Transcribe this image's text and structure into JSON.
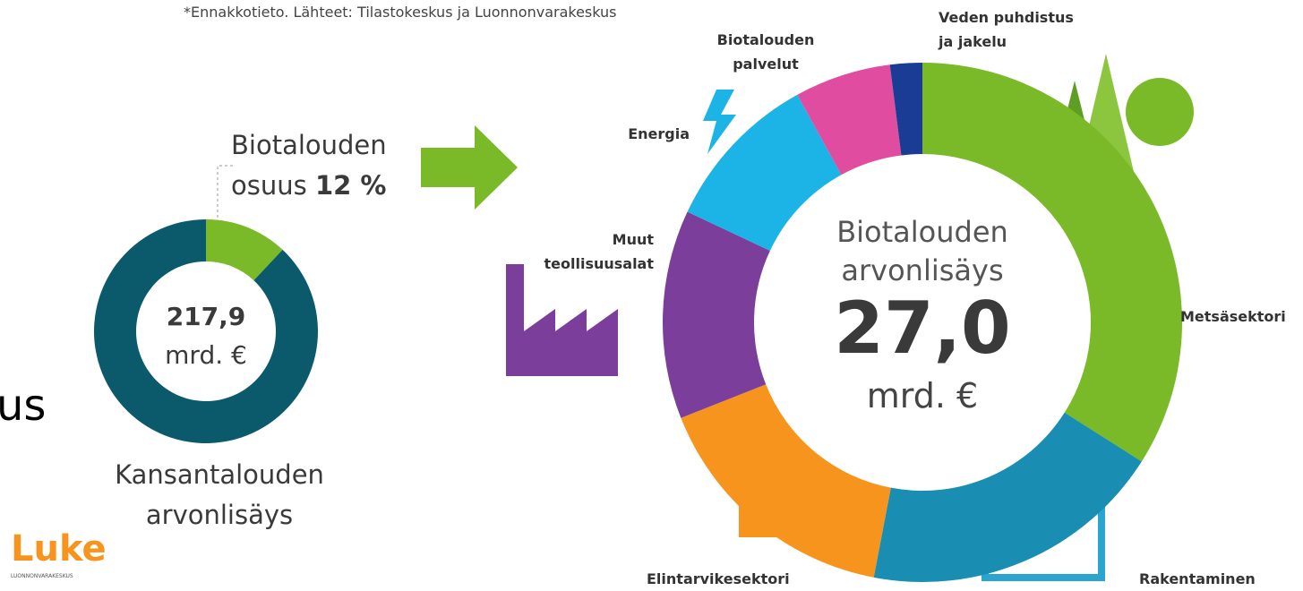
{
  "note": "*Ennakkotieto. Lähteet: Tilastokeskus ja Luonnonvarakeskus",
  "partial_text": "us",
  "logo": {
    "name": "Luke",
    "subtitle": "LUONNONVARAKESKUS"
  },
  "chart_data": [
    {
      "type": "donut",
      "annotation": [
        "Biotalouden",
        "osuus"
      ],
      "center_text": [
        "217,9",
        "mrd. €"
      ],
      "caption": [
        "Kansantalouden",
        "arvonlisäys"
      ],
      "values": [
        12,
        88
      ],
      "value_labels": [
        "12 %",
        null
      ],
      "colors": [
        "#7aba28",
        "#0b5a6b"
      ]
    },
    {
      "type": "donut",
      "center_text": [
        "Biotalouden",
        "arvonlisäys",
        "27,0",
        "mrd. €"
      ],
      "series": [
        {
          "name": "Metsäsektori",
          "color": "#7aba28",
          "values": [
            34
          ]
        },
        {
          "name": "Rakentaminen",
          "color": "#1a8db2",
          "values": [
            19
          ]
        },
        {
          "name": "Elintarvikesektori",
          "color": "#f7941d",
          "values": [
            16
          ]
        },
        {
          "name": "Muut teollisuusalat",
          "color": "#7b3f9b",
          "values": [
            13
          ]
        },
        {
          "name": "Energia",
          "color": "#1cb4e6",
          "values": [
            10
          ]
        },
        {
          "name": "Biotalouden palvelut",
          "color": "#e04da0",
          "values": [
            6
          ]
        },
        {
          "name": "Veden puhdistus ja jakelu",
          "color": "#1b3c94",
          "values": [
            2
          ]
        }
      ]
    }
  ]
}
